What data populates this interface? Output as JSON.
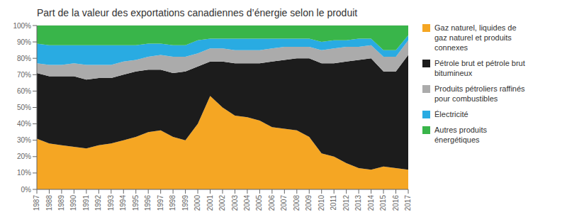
{
  "chart_data": {
    "type": "area",
    "title": "Part de la valeur des exportations canadiennes d’énergie selon le produit",
    "x": [
      1987,
      1988,
      1989,
      1990,
      1991,
      1992,
      1993,
      1994,
      1995,
      1996,
      1997,
      1998,
      1999,
      2000,
      2001,
      2002,
      2003,
      2004,
      2005,
      2006,
      2007,
      2008,
      2009,
      2010,
      2011,
      2012,
      2013,
      2014,
      2015,
      2016,
      2017
    ],
    "series": [
      {
        "name": "Gaz naturel, liquides de\ngaz naturel et produits\nconnexes",
        "color": "#F5A623",
        "values": [
          31,
          28,
          27,
          26,
          25,
          27,
          28,
          30,
          32,
          35,
          36,
          32,
          30,
          40,
          57,
          50,
          45,
          44,
          42,
          38,
          37,
          36,
          32,
          22,
          20,
          16,
          13,
          12,
          14,
          13,
          12
        ]
      },
      {
        "name": "Pétrole brut et pétrole brut\nbitumineux",
        "color": "#1C1C1C",
        "values": [
          40,
          41,
          42,
          43,
          42,
          41,
          40,
          40,
          40,
          38,
          37,
          39,
          42,
          35,
          21,
          28,
          32,
          33,
          35,
          40,
          42,
          44,
          48,
          55,
          57,
          62,
          66,
          68,
          58,
          59,
          70
        ]
      },
      {
        "name": "Produits pétroliers raffinés\npour combustibles",
        "color": "#ABABAB",
        "values": [
          6,
          7,
          7,
          8,
          9,
          8,
          8,
          8,
          7,
          8,
          9,
          10,
          9,
          8,
          8,
          8,
          8,
          8,
          8,
          8,
          8,
          7,
          7,
          8,
          9,
          9,
          8,
          8,
          9,
          9,
          9
        ]
      },
      {
        "name": "Électricité",
        "color": "#29ABE2",
        "values": [
          12,
          12,
          12,
          11,
          12,
          12,
          12,
          10,
          9,
          8,
          7,
          7,
          7,
          8,
          6,
          6,
          7,
          7,
          7,
          6,
          5,
          5,
          5,
          5,
          5,
          4,
          5,
          4,
          4,
          4,
          3
        ]
      },
      {
        "name": "Autres produits\nénergétiques",
        "color": "#39B54A",
        "values": [
          11,
          12,
          12,
          12,
          12,
          12,
          12,
          12,
          12,
          11,
          11,
          12,
          12,
          9,
          8,
          8,
          8,
          8,
          8,
          8,
          8,
          8,
          8,
          10,
          9,
          9,
          8,
          8,
          15,
          15,
          6
        ]
      }
    ],
    "xlim": [
      1987,
      2017
    ],
    "xticks": [
      1987,
      1988,
      1989,
      1990,
      1991,
      1992,
      1993,
      1994,
      1995,
      1996,
      1997,
      1998,
      1999,
      2000,
      2001,
      2002,
      2003,
      2004,
      2005,
      2006,
      2007,
      2008,
      2009,
      2010,
      2011,
      2012,
      2013,
      2014,
      2015,
      2016,
      2017
    ],
    "ylim": [
      0,
      100
    ],
    "yticks": [
      {
        "value": 0,
        "label": "0%"
      },
      {
        "value": 10,
        "label": "10%"
      },
      {
        "value": 20,
        "label": "20%"
      },
      {
        "value": 30,
        "label": "30%"
      },
      {
        "value": 40,
        "label": "40%"
      },
      {
        "value": 50,
        "label": "50%"
      },
      {
        "value": 60,
        "label": "60%"
      },
      {
        "value": 70,
        "label": "70%"
      },
      {
        "value": 80,
        "label": "80%"
      },
      {
        "value": 90,
        "label": "90%"
      },
      {
        "value": 100,
        "label": "100%"
      }
    ],
    "stacked": true,
    "grid": true,
    "legend": "right"
  }
}
